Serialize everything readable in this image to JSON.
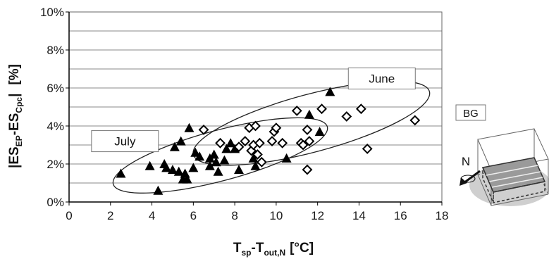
{
  "chart_data": {
    "type": "scatter",
    "xlabel": {
      "main": "T",
      "sub1": "sp",
      "mid": "-T",
      "sub2": "out,N",
      "unit": "[°C]"
    },
    "ylabel": {
      "main1": "|ES",
      "sub1": "EP",
      "mid": "-ES",
      "sub2": "Cpc",
      "end": "|",
      "unit": "[%]"
    },
    "xlim": [
      0,
      18
    ],
    "ylim": [
      0,
      10
    ],
    "xticks": [
      0,
      2,
      4,
      6,
      8,
      10,
      12,
      14,
      16,
      18
    ],
    "yticks": [
      "0%",
      "2%",
      "4%",
      "6%",
      "8%",
      "10%"
    ],
    "grid": "horizontal",
    "annotations": [
      {
        "text": "July",
        "x": 2.7,
        "y": 3.2
      },
      {
        "text": "June",
        "x": 15.1,
        "y": 6.5
      }
    ],
    "series": [
      {
        "marker": "filled-triangle",
        "points": [
          [
            2.5,
            1.5
          ],
          [
            3.9,
            1.9
          ],
          [
            4.3,
            0.6
          ],
          [
            4.6,
            2.0
          ],
          [
            4.7,
            1.8
          ],
          [
            5.0,
            1.7
          ],
          [
            5.1,
            2.9
          ],
          [
            5.3,
            1.6
          ],
          [
            5.4,
            3.2
          ],
          [
            5.5,
            1.2
          ],
          [
            5.6,
            1.5
          ],
          [
            5.7,
            1.2
          ],
          [
            5.8,
            3.9
          ],
          [
            6.0,
            1.8
          ],
          [
            6.1,
            2.6
          ],
          [
            6.3,
            2.4
          ],
          [
            6.8,
            1.9
          ],
          [
            6.8,
            2.3
          ],
          [
            7.0,
            2.5
          ],
          [
            7.1,
            2.1
          ],
          [
            7.2,
            1.6
          ],
          [
            7.5,
            2.2
          ],
          [
            7.6,
            2.8
          ],
          [
            7.8,
            3.1
          ],
          [
            8.0,
            2.8
          ],
          [
            8.2,
            1.7
          ],
          [
            8.9,
            2.3
          ],
          [
            9.0,
            1.9
          ],
          [
            10.5,
            2.3
          ],
          [
            11.6,
            4.6
          ],
          [
            12.1,
            3.7
          ],
          [
            12.6,
            5.8
          ]
        ]
      },
      {
        "marker": "open-diamond",
        "points": [
          [
            6.5,
            3.8
          ],
          [
            7.3,
            3.1
          ],
          [
            8.2,
            2.9
          ],
          [
            8.5,
            3.2
          ],
          [
            8.7,
            3.9
          ],
          [
            8.8,
            2.7
          ],
          [
            8.9,
            3.0
          ],
          [
            9.0,
            4.0
          ],
          [
            9.1,
            2.5
          ],
          [
            9.2,
            3.1
          ],
          [
            9.3,
            2.1
          ],
          [
            9.8,
            3.2
          ],
          [
            9.9,
            3.7
          ],
          [
            10.0,
            3.9
          ],
          [
            10.3,
            3.1
          ],
          [
            11.0,
            4.8
          ],
          [
            11.2,
            3.1
          ],
          [
            11.3,
            3.0
          ],
          [
            11.5,
            3.8
          ],
          [
            11.5,
            1.7
          ],
          [
            11.6,
            3.2
          ],
          [
            12.2,
            4.9
          ],
          [
            13.4,
            4.5
          ],
          [
            14.1,
            4.9
          ],
          [
            14.4,
            2.8
          ],
          [
            16.7,
            4.3
          ]
        ]
      }
    ],
    "ellipses": [
      {
        "name": "July",
        "cx": 7.3,
        "cy": 2.45,
        "rx": 5.35,
        "ry": 1.33,
        "angle_deg": 15
      },
      {
        "name": "June",
        "cx": 11.7,
        "cy": 4.15,
        "rx": 5.9,
        "ry": 1.52,
        "angle_deg": 15
      }
    ]
  },
  "inset": {
    "label": "BG",
    "compass": "N"
  }
}
